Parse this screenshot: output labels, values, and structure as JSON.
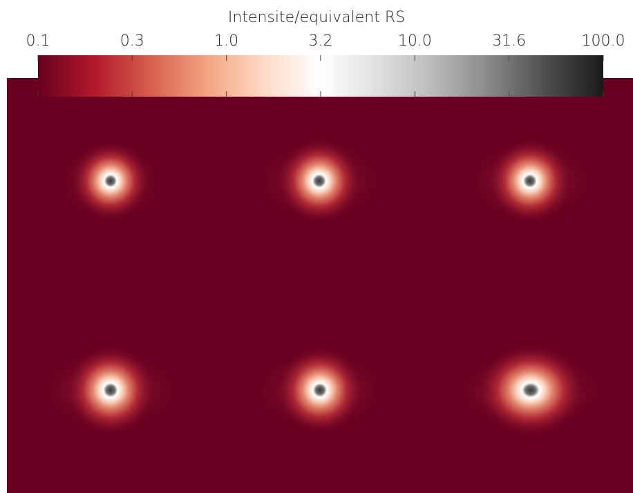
{
  "chart_data": {
    "type": "image",
    "colorbar_title": "Intensite/equivalent RS",
    "clim": [
      0.1,
      100
    ],
    "log_scale": true,
    "cticks": [
      0.1,
      {
        "value": 0.316,
        "label": "0.3"
      },
      {
        "value": 1,
        "label": "1.0"
      },
      {
        "value": 3.16,
        "label": "3.2"
      },
      {
        "value": 10,
        "label": "10.0"
      },
      31.6,
      {
        "value": 100,
        "label": "100.0"
      }
    ],
    "colormap": [
      "#67001f",
      "#b2182b",
      "#d6604d",
      "#f4a582",
      "#fddbc7",
      "#ffffff",
      "#e0e0e0",
      "#bababa",
      "#878787",
      "#4d4d4d",
      "#1a1a1a"
    ]
  }
}
